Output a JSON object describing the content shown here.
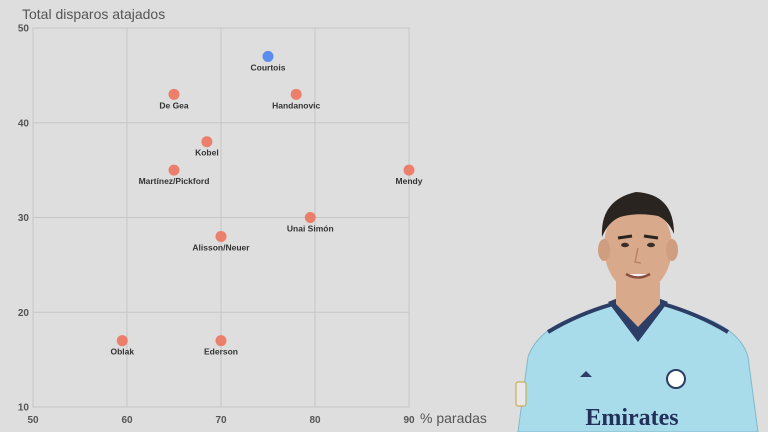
{
  "chart_data": {
    "type": "scatter",
    "ylabel": "Total disparos atajados",
    "xlabel": "% paradas",
    "xlim": [
      50,
      90
    ],
    "ylim": [
      10,
      50
    ],
    "xticks": [
      50,
      60,
      70,
      80,
      90
    ],
    "yticks": [
      10,
      20,
      30,
      40,
      50
    ],
    "grid": true,
    "colors": {
      "highlight": "#5b8def",
      "default": "#ec7e6c"
    },
    "points": [
      {
        "label": "Courtois",
        "x": 75,
        "y": 47,
        "highlight": true
      },
      {
        "label": "De Gea",
        "x": 65,
        "y": 43,
        "highlight": false
      },
      {
        "label": "Handanovic",
        "x": 78,
        "y": 43,
        "highlight": false
      },
      {
        "label": "Kobel",
        "x": 68.5,
        "y": 38,
        "highlight": false
      },
      {
        "label": "Martínez/Pickford",
        "x": 65,
        "y": 35,
        "highlight": false
      },
      {
        "label": "Mendy",
        "x": 90,
        "y": 35,
        "highlight": false
      },
      {
        "label": "Unai Simón",
        "x": 79.5,
        "y": 30,
        "highlight": false
      },
      {
        "label": "Alisson/Neuer",
        "x": 70,
        "y": 28,
        "highlight": false
      },
      {
        "label": "Oblak",
        "x": 59.5,
        "y": 17,
        "highlight": false
      },
      {
        "label": "Ederson",
        "x": 70,
        "y": 17,
        "highlight": false
      }
    ]
  },
  "photo": {
    "jersey_brand": "Emirates",
    "jersey_color": "#a9dcea",
    "hair_color": "#2a2420",
    "skin_color": "#d9a98c"
  }
}
